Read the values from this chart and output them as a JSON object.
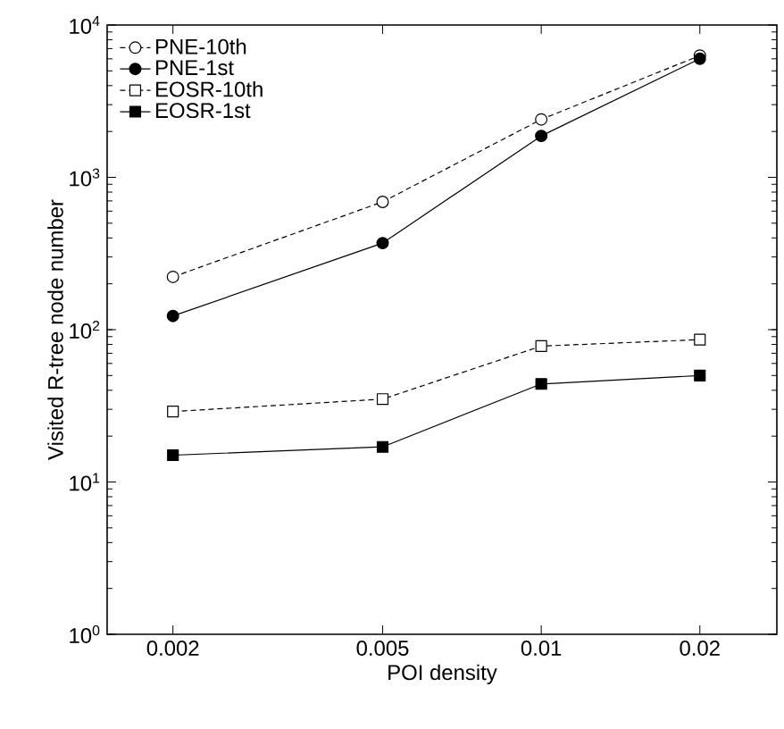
{
  "chart_data": {
    "type": "line",
    "xlabel": "POI density",
    "ylabel": "Visited R-tree node number",
    "x": [
      0.002,
      0.005,
      0.01,
      0.02
    ],
    "series": [
      {
        "name": "PNE-10th",
        "color": "#000000",
        "marker": "circle",
        "line_style": "dashed",
        "values": [
          222,
          690,
          2400,
          6300
        ]
      },
      {
        "name": "PNE-1st",
        "color": "#000000",
        "marker": "circle",
        "line_style": "solid",
        "values": [
          123,
          370,
          1870,
          6000
        ]
      },
      {
        "name": "EOSR-10th",
        "color": "#000000",
        "marker": "square",
        "line_style": "dashed",
        "values": [
          29,
          35,
          78,
          86
        ]
      },
      {
        "name": "EOSR-1st",
        "color": "#000000",
        "marker": "square",
        "line_style": "solid",
        "values": [
          15,
          17,
          44,
          50
        ]
      }
    ],
    "log": "xy",
    "xlim": [
      0.0015,
      0.028
    ],
    "ylim": [
      1,
      10000
    ],
    "xticks": [
      0.002,
      0.005,
      0.01,
      0.02
    ],
    "yticks": [
      {
        "value": 1,
        "label": "10$^{0}$"
      },
      {
        "value": 10,
        "label": "10$^{1}$"
      },
      {
        "value": 100,
        "label": "10$^{2}$"
      },
      {
        "value": 1000,
        "label": "10$^{3}$"
      },
      {
        "value": 10000,
        "label": "10$^{4}$"
      }
    ],
    "grid": false,
    "legend": "top left"
  }
}
